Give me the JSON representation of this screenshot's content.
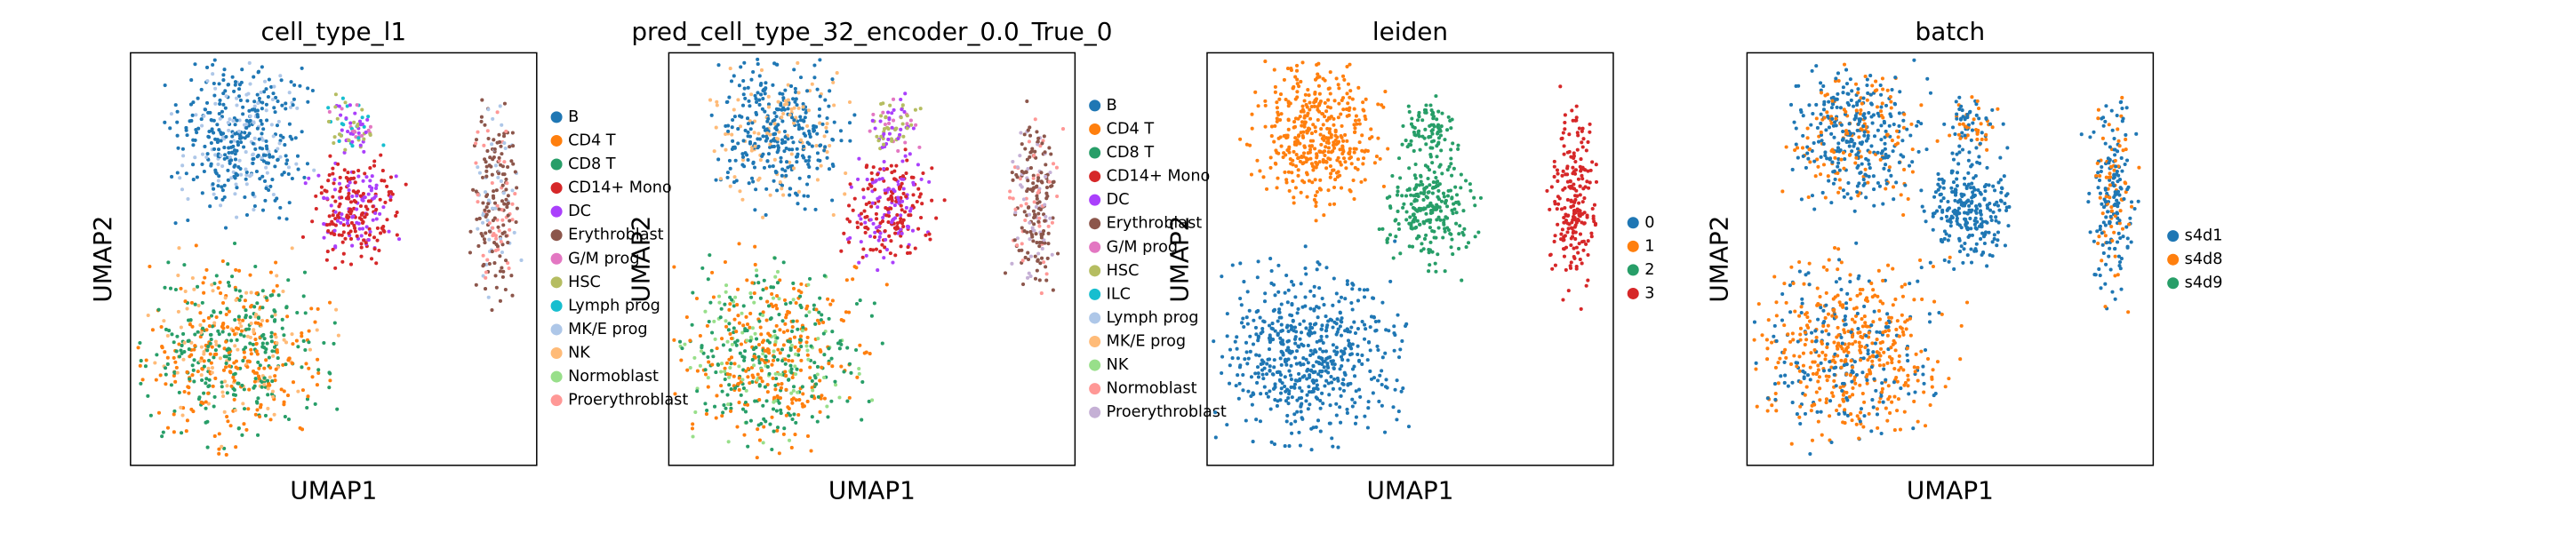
{
  "chart_data": [
    {
      "type": "scatter",
      "title": "cell_type_l1",
      "xlabel": "UMAP1",
      "ylabel": "UMAP2",
      "series": [
        {
          "name": "B",
          "color": "#1f77b4"
        },
        {
          "name": "CD4 T",
          "color": "#ff7f0e"
        },
        {
          "name": "CD8 T",
          "color": "#279e68"
        },
        {
          "name": "CD14+ Mono",
          "color": "#d62728"
        },
        {
          "name": "DC",
          "color": "#aa40fc"
        },
        {
          "name": "Erythroblast",
          "color": "#8c564b"
        },
        {
          "name": "G/M prog",
          "color": "#e377c2"
        },
        {
          "name": "HSC",
          "color": "#b5bd61"
        },
        {
          "name": "Lymph prog",
          "color": "#17becf"
        },
        {
          "name": "MK/E prog",
          "color": "#aec7e8"
        },
        {
          "name": "NK",
          "color": "#ffbb78"
        },
        {
          "name": "Normoblast",
          "color": "#98df8a"
        },
        {
          "name": "Proerythroblast",
          "color": "#ff9896"
        }
      ]
    },
    {
      "type": "scatter",
      "title": "pred_cell_type_32_encoder_0.0_True_0",
      "xlabel": "UMAP1",
      "ylabel": "UMAP2",
      "series": [
        {
          "name": "B",
          "color": "#1f77b4"
        },
        {
          "name": "CD4 T",
          "color": "#ff7f0e"
        },
        {
          "name": "CD8 T",
          "color": "#279e68"
        },
        {
          "name": "CD14+ Mono",
          "color": "#d62728"
        },
        {
          "name": "DC",
          "color": "#aa40fc"
        },
        {
          "name": "Erythroblast",
          "color": "#8c564b"
        },
        {
          "name": "G/M prog",
          "color": "#e377c2"
        },
        {
          "name": "HSC",
          "color": "#b5bd61"
        },
        {
          "name": "ILC",
          "color": "#17becf"
        },
        {
          "name": "Lymph prog",
          "color": "#aec7e8"
        },
        {
          "name": "MK/E prog",
          "color": "#ffbb78"
        },
        {
          "name": "NK",
          "color": "#98df8a"
        },
        {
          "name": "Normoblast",
          "color": "#ff9896"
        },
        {
          "name": "Proerythroblast",
          "color": "#c5b0d5"
        }
      ]
    },
    {
      "type": "scatter",
      "title": "leiden",
      "xlabel": "UMAP1",
      "ylabel": "UMAP2",
      "series": [
        {
          "name": "0",
          "color": "#1f77b4"
        },
        {
          "name": "1",
          "color": "#ff7f0e"
        },
        {
          "name": "2",
          "color": "#279e68"
        },
        {
          "name": "3",
          "color": "#d62728"
        }
      ]
    },
    {
      "type": "scatter",
      "title": "batch",
      "xlabel": "UMAP1",
      "ylabel": "UMAP2",
      "series": [
        {
          "name": "s4d1",
          "color": "#1f77b4"
        },
        {
          "name": "s4d8",
          "color": "#ff7f0e"
        },
        {
          "name": "s4d9",
          "color": "#279e68"
        }
      ]
    }
  ]
}
